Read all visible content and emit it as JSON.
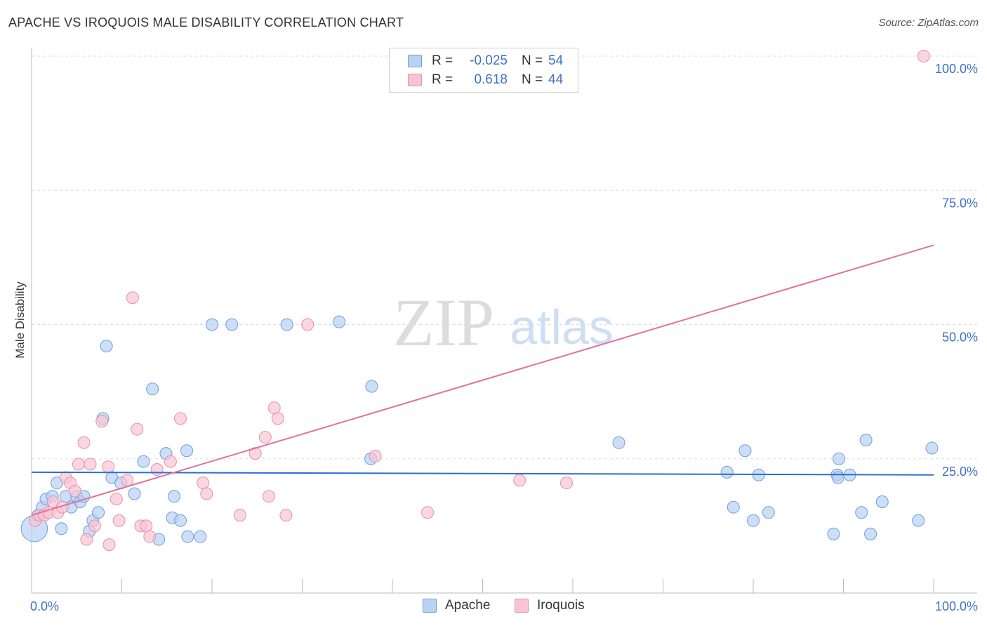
{
  "title": "APACHE VS IROQUOIS MALE DISABILITY CORRELATION CHART",
  "source": "Source: ZipAtlas.com",
  "watermark": {
    "zip": "ZIP",
    "atlas": "atlas"
  },
  "legend": {
    "rows": [
      {
        "r_label": "R =",
        "r_value": "-0.025",
        "n_label": "N =",
        "n_value": "54"
      },
      {
        "r_label": "R =",
        "r_value": "0.618",
        "n_label": "N =",
        "n_value": "44"
      }
    ]
  },
  "bottom_legend": {
    "apache": "Apache",
    "iroquois": "Iroquois"
  },
  "colors": {
    "apache_fill": "#b8d2f2",
    "apache_stroke": "#6d9fe0",
    "apache_line": "#2a6fcf",
    "iroquois_fill": "#f8c4d4",
    "iroquois_stroke": "#e88fab",
    "iroquois_line": "#e0729c",
    "tick_label": "#3d72c4",
    "grid": "#dddddd"
  },
  "chart_data": {
    "type": "scatter",
    "title": "APACHE VS IROQUOIS MALE DISABILITY CORRELATION CHART",
    "xlabel": "",
    "ylabel": "Male Disability",
    "xlim": [
      0,
      100
    ],
    "ylim": [
      0,
      100
    ],
    "x_tick_labels": [
      "0.0%",
      "100.0%"
    ],
    "y_ticks": [
      25,
      50,
      75,
      100
    ],
    "y_tick_labels": [
      "25.0%",
      "50.0%",
      "75.0%",
      "100.0%"
    ],
    "series": [
      {
        "name": "Apache",
        "r": -0.025,
        "n": 54,
        "trend": {
          "x": [
            0,
            100
          ],
          "y": [
            22.5,
            22.0
          ]
        },
        "points": [
          [
            0.3,
            12.0,
            2.2
          ],
          [
            0.7,
            14.5,
            1
          ],
          [
            1.2,
            16.0,
            1
          ],
          [
            1.6,
            17.5,
            1
          ],
          [
            2.3,
            18.0,
            1
          ],
          [
            2.8,
            20.5,
            1
          ],
          [
            3.3,
            12.0,
            1
          ],
          [
            3.8,
            18.0,
            1
          ],
          [
            4.4,
            16.0,
            1
          ],
          [
            5.0,
            18.0,
            1
          ],
          [
            5.4,
            17.0,
            1
          ],
          [
            5.8,
            18.0,
            1
          ],
          [
            6.4,
            11.5,
            1
          ],
          [
            6.8,
            13.5,
            1
          ],
          [
            7.4,
            15.0,
            1
          ],
          [
            7.9,
            32.5,
            1
          ],
          [
            8.3,
            46.0,
            1
          ],
          [
            8.9,
            21.5,
            1
          ],
          [
            9.9,
            20.5,
            1
          ],
          [
            11.4,
            18.5,
            1
          ],
          [
            12.4,
            24.5,
            1
          ],
          [
            13.4,
            38.0,
            1
          ],
          [
            14.1,
            10.0,
            1
          ],
          [
            14.9,
            26.0,
            1
          ],
          [
            15.6,
            14.0,
            1
          ],
          [
            15.8,
            18.0,
            1
          ],
          [
            16.5,
            13.5,
            1
          ],
          [
            17.2,
            26.5,
            1
          ],
          [
            17.3,
            10.5,
            1
          ],
          [
            18.7,
            10.5,
            1
          ],
          [
            20.0,
            50.0,
            1
          ],
          [
            22.2,
            50.0,
            1
          ],
          [
            28.3,
            50.0,
            1
          ],
          [
            34.1,
            50.5,
            1
          ],
          [
            37.6,
            25.0,
            1
          ],
          [
            37.7,
            38.5,
            1
          ],
          [
            65.1,
            28.0,
            1
          ],
          [
            77.1,
            22.5,
            1
          ],
          [
            77.8,
            16.0,
            1
          ],
          [
            79.1,
            26.5,
            1
          ],
          [
            80.0,
            13.5,
            1
          ],
          [
            80.6,
            22.0,
            1
          ],
          [
            81.7,
            15.0,
            1
          ],
          [
            89.3,
            22.0,
            1
          ],
          [
            89.4,
            21.5,
            1
          ],
          [
            90.7,
            22.0,
            1
          ],
          [
            88.9,
            11.0,
            1
          ],
          [
            89.5,
            25.0,
            1
          ],
          [
            92.0,
            15.0,
            1
          ],
          [
            92.5,
            28.5,
            1
          ],
          [
            93.0,
            11.0,
            1
          ],
          [
            94.3,
            17.0,
            1
          ],
          [
            98.3,
            13.5,
            1
          ],
          [
            99.8,
            27.0,
            1
          ]
        ]
      },
      {
        "name": "Iroquois",
        "r": 0.618,
        "n": 44,
        "trend": {
          "x": [
            0,
            100
          ],
          "y": [
            14.5,
            64.8
          ]
        },
        "points": [
          [
            0.4,
            13.5,
            1
          ],
          [
            0.9,
            14.5,
            1
          ],
          [
            1.4,
            14.5,
            1
          ],
          [
            1.9,
            15.0,
            1
          ],
          [
            2.4,
            17.0,
            1
          ],
          [
            2.9,
            15.0,
            1
          ],
          [
            3.4,
            16.0,
            1
          ],
          [
            3.8,
            21.5,
            1
          ],
          [
            4.3,
            20.5,
            1
          ],
          [
            4.8,
            19.0,
            1
          ],
          [
            5.2,
            24.0,
            1
          ],
          [
            5.8,
            28.0,
            1
          ],
          [
            6.1,
            10.0,
            1
          ],
          [
            6.5,
            24.0,
            1
          ],
          [
            7.0,
            12.5,
            1
          ],
          [
            7.8,
            32.0,
            1
          ],
          [
            8.5,
            23.5,
            1
          ],
          [
            8.6,
            9.0,
            1
          ],
          [
            9.4,
            17.5,
            1
          ],
          [
            9.7,
            13.5,
            1
          ],
          [
            10.6,
            21.0,
            1
          ],
          [
            11.2,
            55.0,
            1
          ],
          [
            11.7,
            30.5,
            1
          ],
          [
            12.1,
            12.5,
            1
          ],
          [
            12.7,
            12.5,
            1
          ],
          [
            13.1,
            10.5,
            1
          ],
          [
            13.9,
            23.0,
            1
          ],
          [
            15.4,
            24.5,
            1
          ],
          [
            16.5,
            32.5,
            1
          ],
          [
            19.0,
            20.5,
            1
          ],
          [
            19.4,
            18.5,
            1
          ],
          [
            23.1,
            14.5,
            1
          ],
          [
            24.8,
            26.0,
            1
          ],
          [
            25.9,
            29.0,
            1
          ],
          [
            26.3,
            18.0,
            1
          ],
          [
            26.9,
            34.5,
            1
          ],
          [
            27.3,
            32.5,
            1
          ],
          [
            28.2,
            14.5,
            1
          ],
          [
            30.6,
            50.0,
            1
          ],
          [
            38.1,
            25.5,
            1
          ],
          [
            43.9,
            15.0,
            1
          ],
          [
            54.1,
            21.0,
            1
          ],
          [
            59.3,
            20.5,
            1
          ],
          [
            98.9,
            100.0,
            1
          ]
        ]
      }
    ]
  }
}
